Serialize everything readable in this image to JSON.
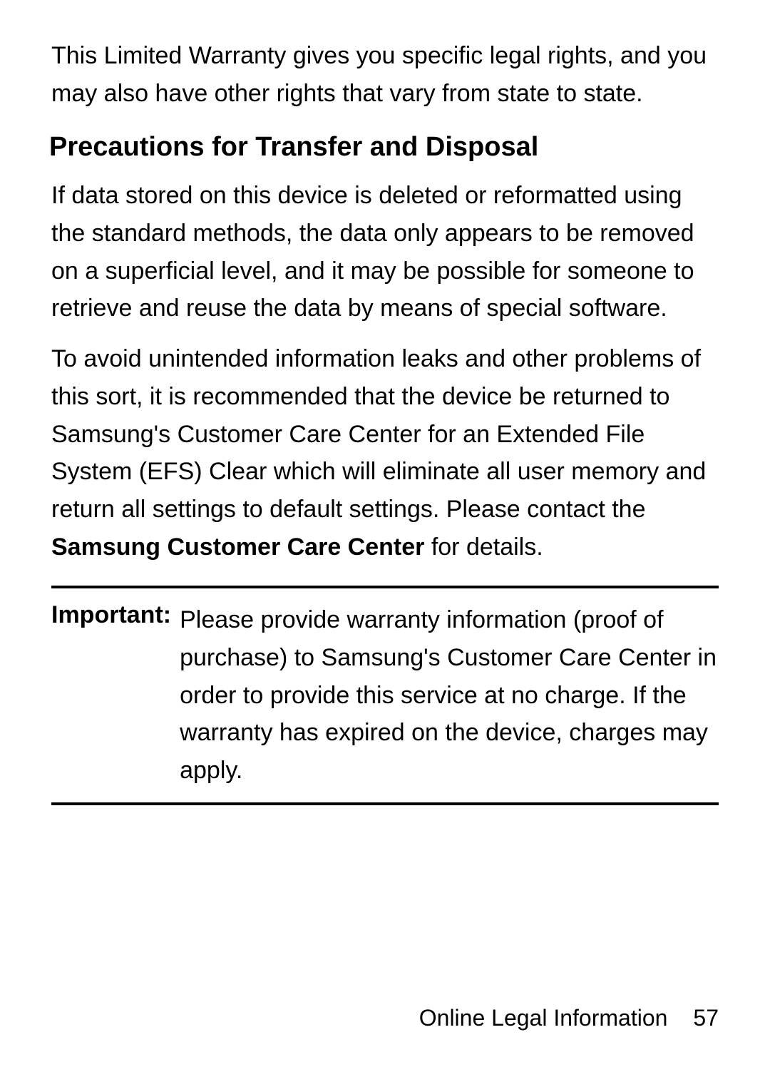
{
  "intro": "This Limited Warranty gives you specific legal rights, and you may also have other rights that vary from state to state.",
  "heading": "Precautions for Transfer and Disposal",
  "para1": "If data stored on this device is deleted or reformatted using the standard methods, the data only appears to be removed on a superficial level, and it may be possible for someone to retrieve and reuse the data by means of special software.",
  "para2_pre": "To avoid unintended information leaks and other problems of this sort, it is recommended that the device be returned to Samsung's Customer Care Center for an Extended File System (EFS) Clear which will eliminate all user memory and return all settings to default settings. Please contact the ",
  "para2_bold": "Samsung Customer Care Center",
  "para2_post": " for details.",
  "important_label": "Important:",
  "important_text": "Please provide warranty information (proof of purchase) to Samsung's Customer Care Center in order to provide this service at no charge. If the warranty has expired on the device, charges may apply.",
  "footer_section": "Online Legal Information",
  "footer_page": "57",
  "colors": {
    "text": "#000000",
    "background": "#ffffff",
    "border": "#000000"
  },
  "typography": {
    "body_fontsize": 34,
    "heading_fontsize": 38,
    "footer_fontsize": 32,
    "line_height": 1.55
  }
}
